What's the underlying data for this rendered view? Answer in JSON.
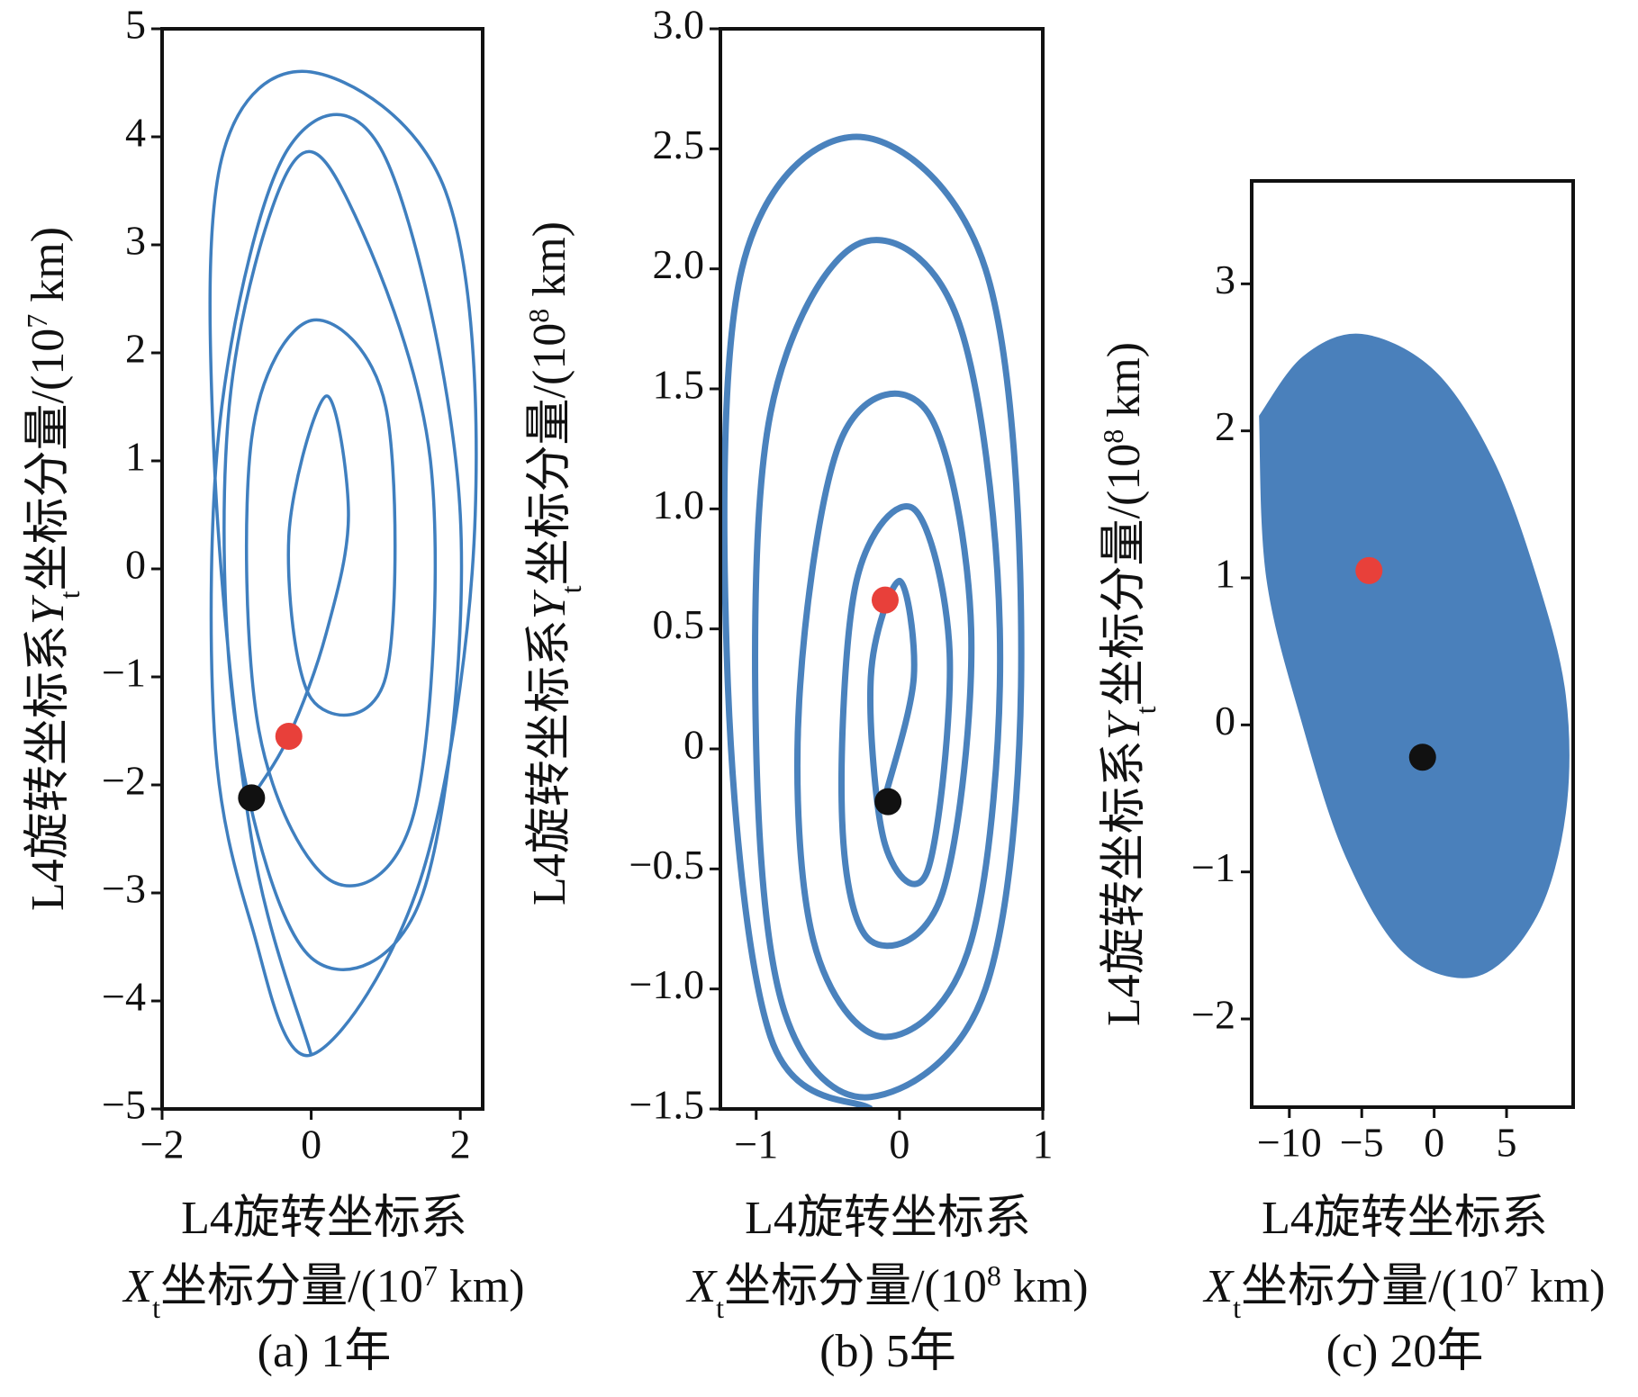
{
  "chart_data": [
    {
      "type": "line",
      "caption": "(a) 1年",
      "xlabel": {
        "text": "L4旋转坐标系",
        "var": "X",
        "sub": "t",
        "rest": "坐标分量/(10",
        "exp": "7",
        "unit": " km)"
      },
      "ylabel": {
        "text": "L4旋转坐标系",
        "var": "Y",
        "sub": "t",
        "rest": "坐标分量/(10",
        "exp": "7",
        "unit": " km)"
      },
      "xlim": [
        -2,
        2.3
      ],
      "ylim": [
        -5,
        5
      ],
      "xticks": [
        {
          "value": -2,
          "label": "−2"
        },
        0,
        2
      ],
      "yticks": [
        {
          "value": -5,
          "label": "−5"
        },
        {
          "value": -4,
          "label": "−4"
        },
        {
          "value": -3,
          "label": "−3"
        },
        {
          "value": -2,
          "label": "−2"
        },
        {
          "value": -1,
          "label": "−1"
        },
        0,
        1,
        2,
        3,
        4,
        5
      ],
      "series": [
        {
          "color": "#3f7fbf",
          "filled": false,
          "x": [
            -0.8,
            -0.3,
            0.2,
            0.5,
            0.2,
            -0.3,
            0,
            1,
            1,
            0,
            -0.8,
            -0.7,
            0.3,
            1.4,
            1.6,
            0.5,
            -0.3,
            -1.1,
            -1,
            0,
            1.5,
            2,
            1,
            -0.3,
            -1.2,
            -1.3,
            -0.8,
            0,
            1.5,
            2.2,
            1.8,
            0,
            -1.2,
            -1.3,
            -0.8,
            0
          ],
          "y": [
            -2.12,
            -1.55,
            -0.6,
            0.5,
            1.6,
            0.3,
            -1.2,
            -1,
            1.5,
            2.3,
            1.2,
            -1.5,
            -2.9,
            -2.2,
            1,
            3.4,
            3.7,
            1.5,
            -1.5,
            -3.6,
            -3,
            0.5,
            3.8,
            3.9,
            1.5,
            -1.5,
            -3.3,
            -4.5,
            -2.8,
            0.5,
            3.5,
            4.6,
            3.8,
            1,
            -2.5,
            -4.5
          ]
        }
      ],
      "markers": {
        "x": [
          -0.3,
          -0.8
        ],
        "y": [
          -1.55,
          -2.12
        ],
        "colors": [
          "#e8403a",
          "#111111"
        ]
      }
    },
    {
      "type": "line",
      "caption": "(b) 5年",
      "xlabel": {
        "text": "L4旋转坐标系",
        "var": "X",
        "sub": "t",
        "rest": "坐标分量/(10",
        "exp": "8",
        "unit": " km)"
      },
      "ylabel": {
        "text": "L4旋转坐标系",
        "var": "Y",
        "sub": "t",
        "rest": "坐标分量/(10",
        "exp": "8",
        "unit": " km)"
      },
      "xlim": [
        -1.25,
        1.0
      ],
      "ylim": [
        -1.5,
        3.0
      ],
      "xticks": [
        {
          "value": -1,
          "label": "−1"
        },
        0,
        1
      ],
      "yticks": [
        {
          "value": -1.5,
          "label": "−1.5"
        },
        {
          "value": -1,
          "label": "−1.0"
        },
        {
          "value": -0.5,
          "label": "−0.5"
        },
        0,
        0.5,
        {
          "value": 1,
          "label": "1.0"
        },
        1.5,
        {
          "value": 2,
          "label": "2.0"
        },
        2.5,
        {
          "value": 3,
          "label": "3.0"
        }
      ],
      "series": [
        {
          "color": "#4a82bd",
          "filled": false,
          "x": [
            -0.1,
            0.1,
            0,
            -0.2,
            -0.1,
            0.2,
            0.35,
            0.1,
            -0.3,
            -0.4,
            -0.2,
            0.3,
            0.5,
            0.2,
            -0.4,
            -0.7,
            -0.6,
            -0.1,
            0.5,
            0.7,
            0.4,
            -0.3,
            -0.9,
            -1.0,
            -0.8,
            -0.2,
            0.6,
            0.85,
            0.6,
            -0.3,
            -1.1,
            -1.2,
            -0.9,
            -0.2
          ],
          "y": [
            -0.2,
            0.3,
            0.7,
            0.3,
            -0.4,
            -0.5,
            0.4,
            1.0,
            0.7,
            -0.3,
            -0.8,
            -0.6,
            0.5,
            1.4,
            1.3,
            0.2,
            -0.8,
            -1.2,
            -0.8,
            0.5,
            1.8,
            2.1,
            1.4,
            0,
            -1.1,
            -1.45,
            -1.0,
            0.4,
            2.0,
            2.55,
            2.0,
            0.3,
            -1.2,
            -1.5
          ]
        }
      ],
      "markers": {
        "x": [
          -0.1,
          -0.08
        ],
        "y": [
          0.62,
          -0.22
        ],
        "colors": [
          "#e8403a",
          "#111111"
        ]
      }
    },
    {
      "type": "line",
      "caption": "(c) 20年",
      "xlabel": {
        "text": "L4旋转坐标系",
        "var": "X",
        "sub": "t",
        "rest": "坐标分量/(10",
        "exp": "7",
        "unit": " km)"
      },
      "ylabel": {
        "text": "L4旋转坐标系",
        "var": "Y",
        "sub": "t",
        "rest": "坐标分量/(10",
        "exp": "8",
        "unit": " km)"
      },
      "xlim": [
        -12.6,
        9.6
      ],
      "ylim": [
        -2.6,
        3.7
      ],
      "xticks": [
        {
          "value": -10,
          "label": "−10"
        },
        {
          "value": -5,
          "label": "−5"
        },
        0,
        5
      ],
      "yticks": [
        {
          "value": -2,
          "label": "−2"
        },
        {
          "value": -1,
          "label": "−1"
        },
        0,
        1,
        2,
        3
      ],
      "series": [
        {
          "color": "#4a80bb",
          "filled": true,
          "x": [
            -12,
            -9,
            -5,
            0,
            4,
            7,
            9,
            9,
            7,
            3,
            -2,
            -6,
            -9,
            -11.5,
            -12
          ],
          "y": [
            2.1,
            2.5,
            2.65,
            2.4,
            1.8,
            1.0,
            0.2,
            -0.6,
            -1.3,
            -1.7,
            -1.55,
            -0.9,
            0,
            1.0,
            2.1
          ]
        }
      ],
      "markers": {
        "x": [
          -4.5,
          -0.8
        ],
        "y": [
          1.05,
          -0.22
        ],
        "colors": [
          "#e8403a",
          "#111111"
        ]
      }
    }
  ]
}
